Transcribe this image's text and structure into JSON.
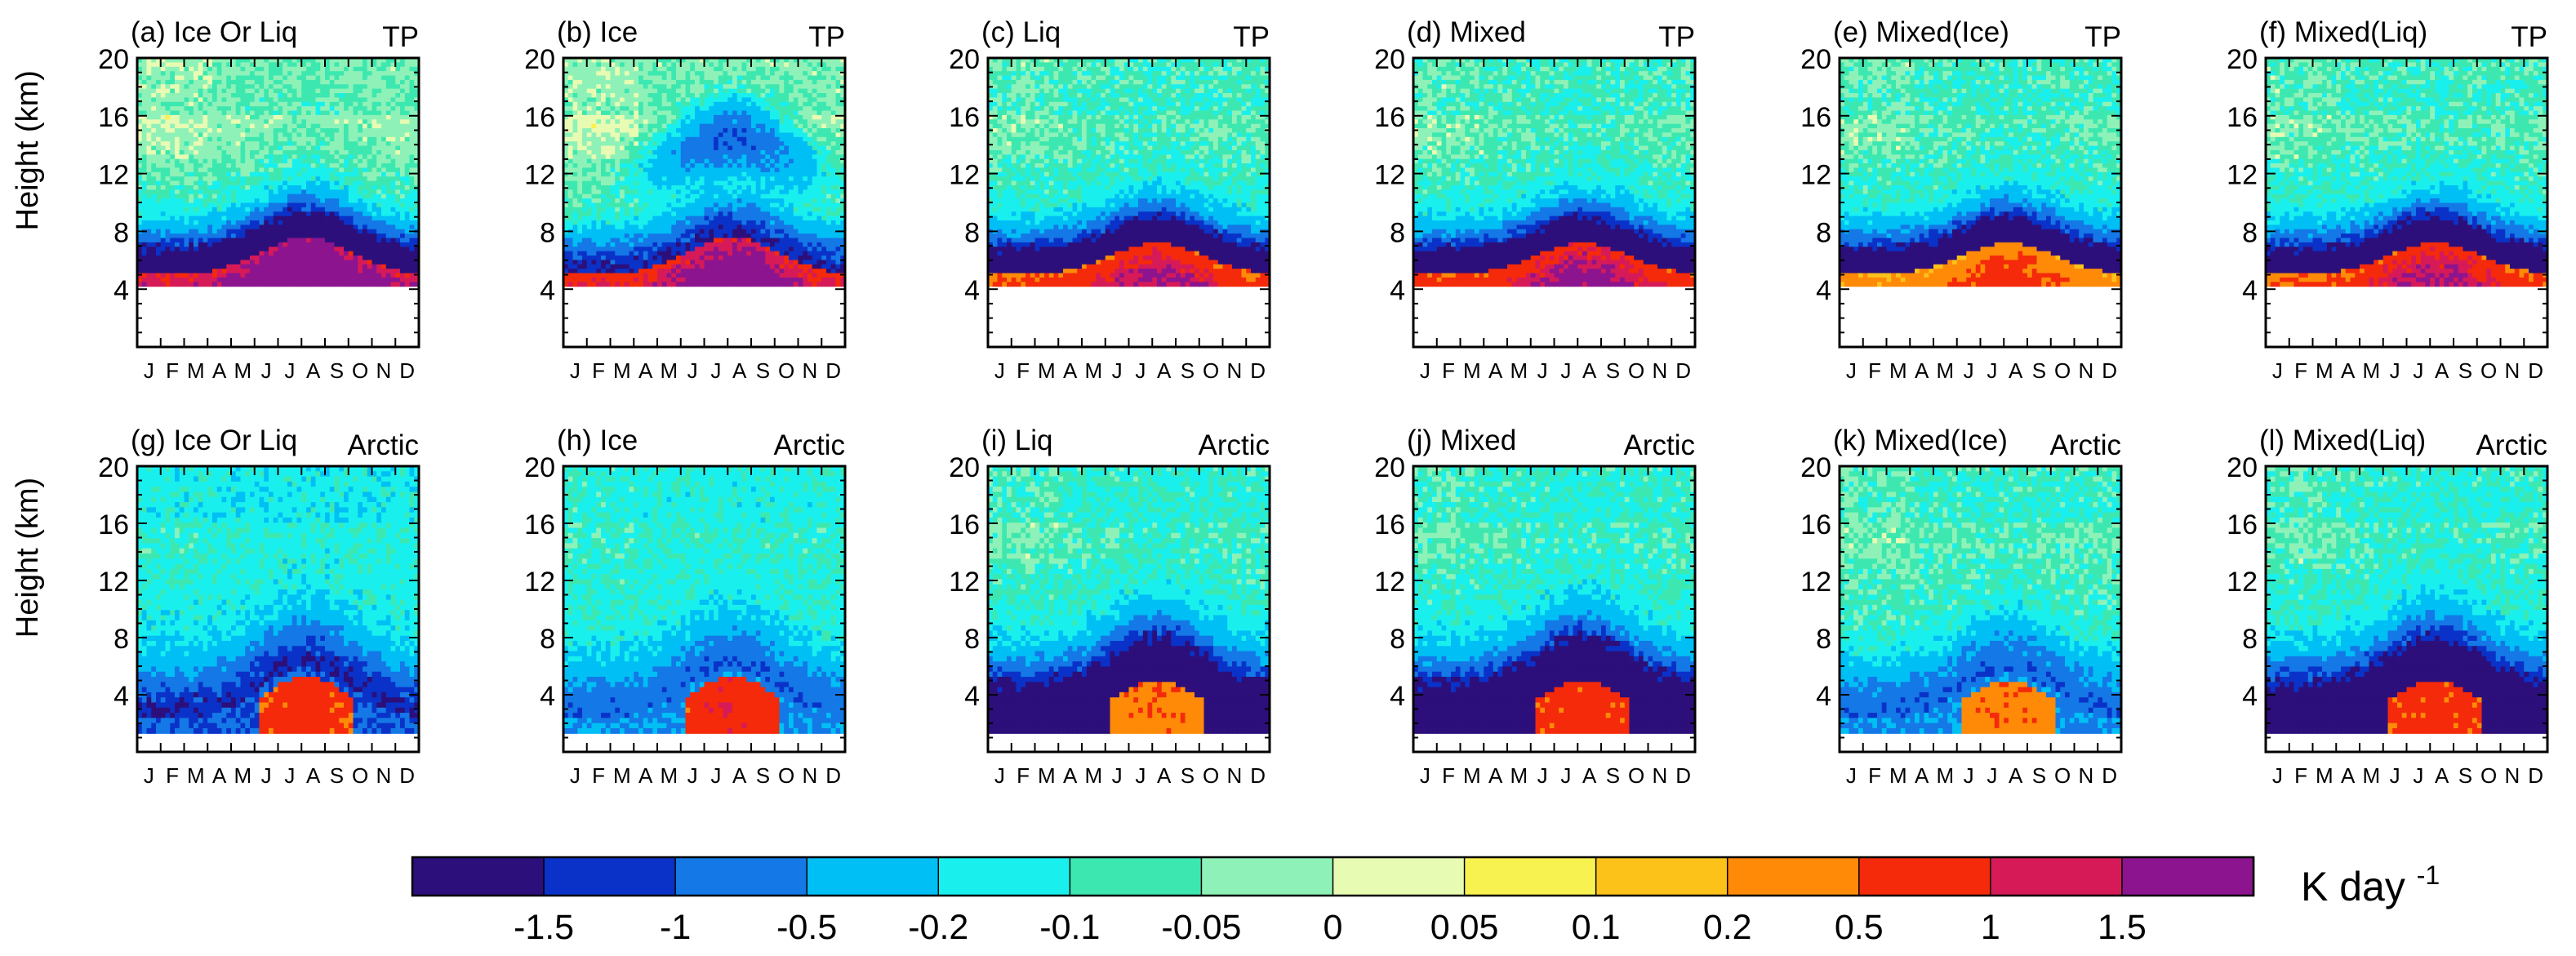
{
  "chart_data": {
    "type": "heatmap",
    "value_unit": "K day",
    "value_unit_exponent": "-1",
    "months": [
      "J",
      "F",
      "M",
      "A",
      "M",
      "J",
      "J",
      "A",
      "S",
      "O",
      "N",
      "D"
    ],
    "y_axis": {
      "label": "Height (km)",
      "ticks": [
        "4",
        "8",
        "12",
        "16",
        "20"
      ],
      "range_km": [
        0,
        20
      ]
    },
    "colorbar": {
      "boundaries": [
        "-1.5",
        "-1",
        "-0.5",
        "-0.2",
        "-0.1",
        "-0.05",
        "0",
        "0.05",
        "0.1",
        "0.2",
        "0.5",
        "1",
        "1.5"
      ],
      "colors": [
        "#2c0f7a",
        "#0a32c8",
        "#1478e6",
        "#00bff5",
        "#19f0ee",
        "#3de8b0",
        "#8ef2b8",
        "#e8fbb2",
        "#f8f250",
        "#fcc21a",
        "#fe8a08",
        "#f42a0a",
        "#d61a58",
        "#8c148e"
      ]
    },
    "panels": [
      {
        "id": "a",
        "title": "(a) Ice Or Liq",
        "region": "TP",
        "surface_km": 4.2,
        "cool_core": "dark",
        "warm_mag": 3.2,
        "warm_spread": 1.0,
        "aloft": 0.02,
        "hump": 1.0
      },
      {
        "id": "b",
        "title": "(b) Ice",
        "region": "TP",
        "surface_km": 4.2,
        "cool_core": "mid",
        "warm_mag": 2.2,
        "warm_spread": 1.35,
        "aloft": 0.02,
        "hump": 1.0
      },
      {
        "id": "c",
        "title": "(c) Liq",
        "region": "TP",
        "surface_km": 4.2,
        "cool_core": "dark",
        "warm_mag": 1.6,
        "warm_spread": 0.6,
        "aloft": -0.02,
        "hump": 0.85
      },
      {
        "id": "d",
        "title": "(d) Mixed",
        "region": "TP",
        "surface_km": 4.2,
        "cool_core": "dark",
        "warm_mag": 1.9,
        "warm_spread": 0.65,
        "aloft": -0.02,
        "hump": 0.85
      },
      {
        "id": "e",
        "title": "(e) Mixed(Ice)",
        "region": "TP",
        "surface_km": 4.2,
        "cool_core": "dark",
        "warm_mag": 0.7,
        "warm_spread": 0.8,
        "aloft": -0.02,
        "hump": 0.85
      },
      {
        "id": "f",
        "title": "(f) Mixed(Liq)",
        "region": "TP",
        "surface_km": 4.2,
        "cool_core": "dark",
        "warm_mag": 1.6,
        "warm_spread": 0.65,
        "aloft": -0.02,
        "hump": 0.85
      },
      {
        "id": "g",
        "title": "(g) Ice Or Liq",
        "region": "Arctic",
        "surface_km": 1.3,
        "cool_core": "mid",
        "warm_mag": 0.6,
        "warm_spread": 0.9,
        "aloft": -0.1,
        "hump": 1.0
      },
      {
        "id": "h",
        "title": "(h) Ice",
        "region": "Arctic",
        "surface_km": 1.3,
        "cool_core": "light",
        "warm_mag": 0.7,
        "warm_spread": 1.4,
        "aloft": -0.08,
        "hump": 1.0
      },
      {
        "id": "i",
        "title": "(i) Liq",
        "region": "Arctic",
        "surface_km": 1.3,
        "cool_core": "dark",
        "warm_mag": 0.35,
        "warm_spread": 0.7,
        "aloft": -0.03,
        "hump": 0.9
      },
      {
        "id": "j",
        "title": "(j) Mixed",
        "region": "Arctic",
        "surface_km": 1.3,
        "cool_core": "dark",
        "warm_mag": 0.6,
        "warm_spread": 0.8,
        "aloft": -0.03,
        "hump": 0.9
      },
      {
        "id": "k",
        "title": "(k) Mixed(Ice)",
        "region": "Arctic",
        "surface_km": 1.3,
        "cool_core": "light",
        "warm_mag": 0.35,
        "warm_spread": 0.7,
        "aloft": -0.03,
        "hump": 0.9
      },
      {
        "id": "l",
        "title": "(l) Mixed(Liq)",
        "region": "Arctic",
        "surface_km": 1.3,
        "cool_core": "dark",
        "warm_mag": 0.6,
        "warm_spread": 0.8,
        "aloft": -0.03,
        "hump": 0.9
      }
    ]
  }
}
